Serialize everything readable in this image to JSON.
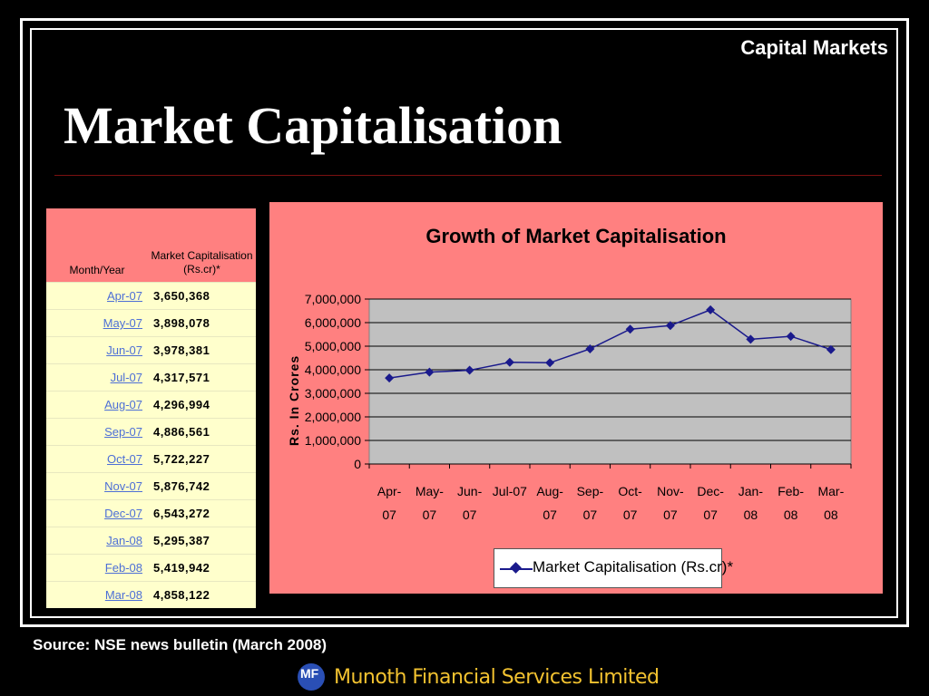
{
  "header": {
    "section": "Capital Markets",
    "title": "Market Capitalisation"
  },
  "table": {
    "col1": "Month/Year",
    "col2": "Market Capitalisation (Rs.cr)*",
    "rows": [
      {
        "month": "Apr-07",
        "value": "3,650,368"
      },
      {
        "month": "May-07",
        "value": "3,898,078"
      },
      {
        "month": "Jun-07",
        "value": "3,978,381"
      },
      {
        "month": "Jul-07",
        "value": "4,317,571"
      },
      {
        "month": "Aug-07",
        "value": "4,296,994"
      },
      {
        "month": "Sep-07",
        "value": "4,886,561"
      },
      {
        "month": "Oct-07",
        "value": "5,722,227"
      },
      {
        "month": "Nov-07",
        "value": "5,876,742"
      },
      {
        "month": "Dec-07",
        "value": "6,543,272"
      },
      {
        "month": "Jan-08",
        "value": "5,295,387"
      },
      {
        "month": "Feb-08",
        "value": "5,419,942"
      },
      {
        "month": "Mar-08",
        "value": "4,858,122"
      }
    ]
  },
  "chart_data": {
    "type": "line",
    "title": "Growth of Market Capitalisation",
    "ylabel": "Rs. In Crores",
    "xlabel": "",
    "categories": [
      [
        "Apr-",
        "07"
      ],
      [
        "May-",
        "07"
      ],
      [
        "Jun-",
        "07"
      ],
      [
        "Jul-07",
        ""
      ],
      [
        "Aug-",
        "07"
      ],
      [
        "Sep-",
        "07"
      ],
      [
        "Oct-",
        "07"
      ],
      [
        "Nov-",
        "07"
      ],
      [
        "Dec-",
        "07"
      ],
      [
        "Jan-",
        "08"
      ],
      [
        "Feb-",
        "08"
      ],
      [
        "Mar-",
        "08"
      ]
    ],
    "series": [
      {
        "name": "Market Capitalisation (Rs.cr)*",
        "values": [
          3650368,
          3898078,
          3978381,
          4317571,
          4296994,
          4886561,
          5722227,
          5876742,
          6543272,
          5295387,
          5419942,
          4858122
        ]
      }
    ],
    "ylim": [
      0,
      7000000
    ],
    "yticks": [
      "0",
      "1,000,000",
      "2,000,000",
      "3,000,000",
      "4,000,000",
      "5,000,000",
      "6,000,000",
      "7,000,000"
    ],
    "grid": true,
    "legend": "bottom",
    "colors": {
      "line": "#1a1a8c",
      "plot_bg": "#c0c0c0",
      "chart_bg": "#ff8080"
    }
  },
  "footer": {
    "source": "Source: NSE news bulletin (March 2008)",
    "company": "Munoth Financial Services Limited",
    "logo_text": "MF"
  }
}
